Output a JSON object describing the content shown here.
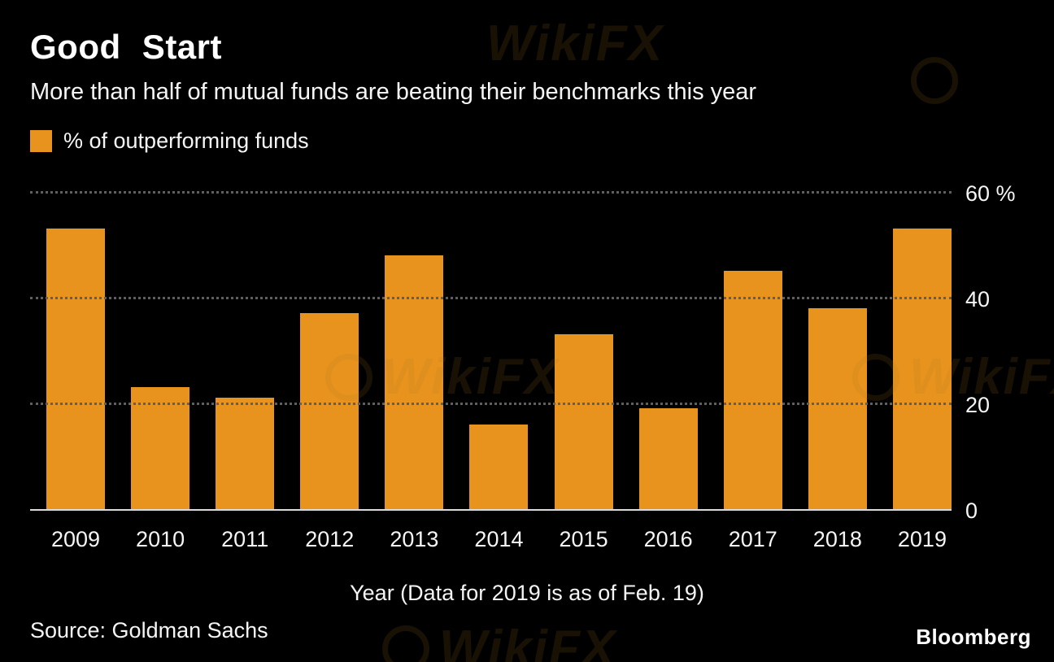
{
  "header": {
    "title": "Good Start",
    "subtitle": "More than half of mutual funds are beating their benchmarks this year"
  },
  "legend": {
    "label": "% of outperforming funds"
  },
  "chart_data": {
    "type": "bar",
    "title": "Good Start",
    "subtitle": "More than half of mutual funds are beating their benchmarks this year",
    "categories": [
      "2009",
      "2010",
      "2011",
      "2012",
      "2013",
      "2014",
      "2015",
      "2016",
      "2017",
      "2018",
      "2019"
    ],
    "values": [
      53,
      23,
      21,
      37,
      48,
      16,
      33,
      19,
      45,
      38,
      53
    ],
    "series_name": "% of outperforming funds",
    "xlabel": "Year (Data for 2019 is as of Feb. 19)",
    "ylabel": "%",
    "ylim": [
      0,
      60
    ],
    "yticks": [
      {
        "value": 0,
        "label": "0"
      },
      {
        "value": 20,
        "label": "20"
      },
      {
        "value": 40,
        "label": "40"
      },
      {
        "value": 60,
        "label": "60 %"
      }
    ],
    "grid": "horizontal-dotted",
    "legend_position": "top-left",
    "y_axis_side": "right"
  },
  "footer": {
    "source": "Source: Goldman Sachs",
    "brand": "Bloomberg"
  },
  "colors": {
    "bar": "#E8931D",
    "background": "#000000",
    "text": "#FFFFFF",
    "gridline": "#5F5F5F",
    "axis": "#DADADA"
  },
  "watermark": {
    "text": "WikiFX"
  }
}
